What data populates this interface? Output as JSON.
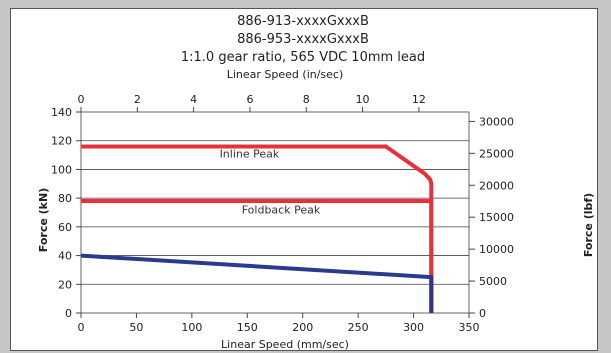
{
  "chart_data": {
    "type": "line",
    "title_lines": [
      "886-913-xxxxGxxxB",
      "886-953-xxxxGxxxB",
      "1:1.0 gear ratio, 565 VDC 10mm lead"
    ],
    "top_axis": {
      "label": "Linear Speed (in/sec)",
      "ticks": [
        0,
        2,
        4,
        6,
        8,
        10,
        12
      ],
      "range": [
        0,
        13.78
      ]
    },
    "xlabel": "Linear Speed (mm/sec)",
    "xlim": [
      0,
      350
    ],
    "xticks": [
      0,
      50,
      100,
      150,
      200,
      250,
      300,
      350
    ],
    "ylabel": "Force (kN)",
    "ylim": [
      0,
      140
    ],
    "yticks": [
      0,
      20,
      40,
      60,
      80,
      100,
      120,
      140
    ],
    "y2label": "Force (lbf)",
    "y2lim": [
      0,
      31473
    ],
    "y2ticks": [
      0,
      5000,
      10000,
      15000,
      20000,
      25000,
      30000
    ],
    "series": [
      {
        "name": "Inline Peak",
        "color": "#e8303a",
        "x": [
          0,
          275,
          310,
          315,
          316,
          316
        ],
        "y": [
          116,
          116,
          97,
          93,
          90,
          0
        ]
      },
      {
        "name": "Foldback Peak",
        "color": "#e8303a",
        "x": [
          0,
          316,
          316
        ],
        "y": [
          78,
          78,
          0
        ]
      },
      {
        "name": "",
        "color": "#2b3a8f",
        "x": [
          0,
          316,
          316
        ],
        "y": [
          40,
          25,
          0
        ]
      }
    ],
    "annotations": [
      {
        "text": "Inline Peak",
        "x": 125,
        "y": 111
      },
      {
        "text": "Foldback Peak",
        "x": 145,
        "y": 72
      }
    ]
  }
}
